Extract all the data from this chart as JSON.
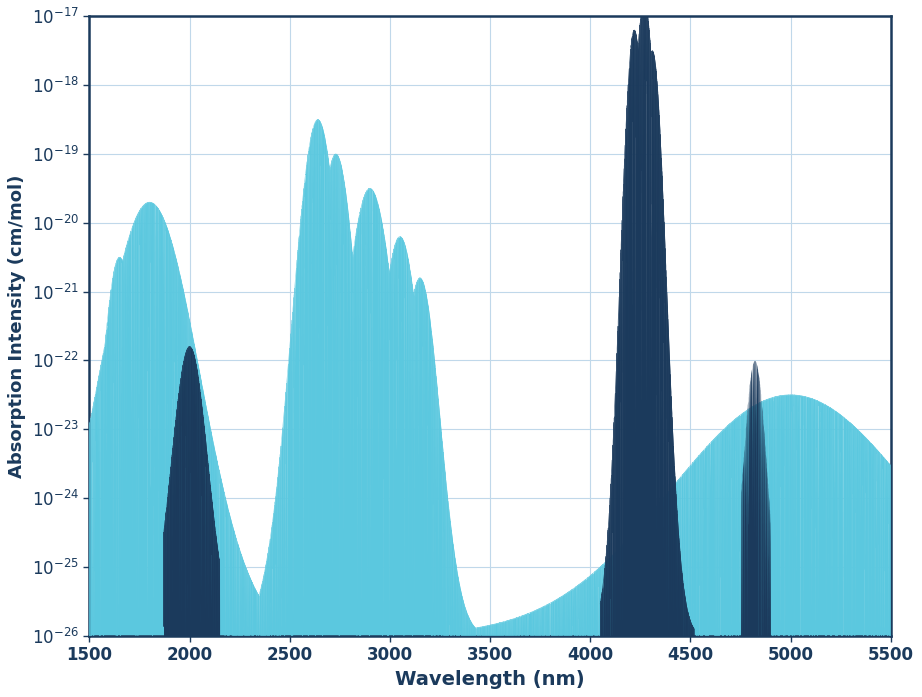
{
  "xlabel": "Wavelength (nm)",
  "ylabel": "Absorption Intensity (cm/mol)",
  "xlim": [
    1500,
    5500
  ],
  "ylog_min": -26,
  "ylog_max": -17,
  "light_blue": "#5BC8DF",
  "dark_navy": "#1B3A5C",
  "background": "#FFFFFF",
  "grid_color": "#C0D8EA",
  "border_color": "#1B3A5C",
  "label_color": "#1B3A5C",
  "xlabel_fontsize": 14,
  "ylabel_fontsize": 13,
  "tick_fontsize": 12,
  "figsize": [
    9.22,
    6.97
  ],
  "dpi": 100
}
